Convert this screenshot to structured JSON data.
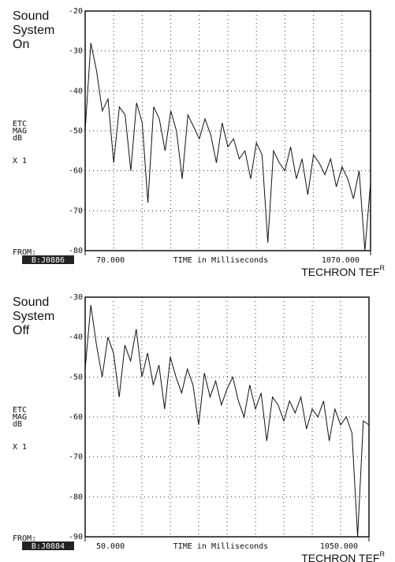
{
  "chart_data": [
    {
      "type": "line",
      "title": [
        "Sound",
        "System",
        "On"
      ],
      "ylabel": [
        "ETC",
        "MAG",
        "dB"
      ],
      "scale": "X 1",
      "from_label": "FROM:",
      "marker": "B:J0886",
      "xlabel": "TIME in Milliseconds",
      "brand": "TECHRON TEF",
      "brand_mark": "R",
      "color": "#111111",
      "grid": true,
      "ylim": [
        -80,
        -20
      ],
      "yticks": [
        -80,
        -70,
        -60,
        -50,
        -40,
        -30,
        -20
      ],
      "xlim": [
        70,
        1070
      ],
      "xticks": [
        {
          "value": 70,
          "label": "70.000"
        },
        {
          "value": 1070,
          "label": "1070.000"
        }
      ],
      "xgrid": [
        170,
        270,
        370,
        470,
        570,
        670,
        770,
        870,
        970
      ],
      "x": [
        70,
        90,
        110,
        130,
        150,
        170,
        190,
        210,
        230,
        250,
        270,
        290,
        310,
        330,
        350,
        370,
        390,
        410,
        430,
        450,
        470,
        490,
        510,
        530,
        550,
        570,
        590,
        610,
        630,
        650,
        670,
        690,
        710,
        730,
        750,
        770,
        790,
        810,
        830,
        850,
        870,
        890,
        910,
        930,
        950,
        970,
        990,
        1010,
        1030,
        1050,
        1070
      ],
      "values": [
        -50,
        -28,
        -35,
        -45,
        -42,
        -58,
        -44,
        -46,
        -60,
        -43,
        -48,
        -68,
        -44,
        -47,
        -55,
        -45,
        -50,
        -62,
        -46,
        -49,
        -52,
        -47,
        -51,
        -58,
        -48,
        -54,
        -52,
        -57,
        -55,
        -62,
        -53,
        -56,
        -78,
        -55,
        -58,
        -60,
        -54,
        -62,
        -57,
        -66,
        -56,
        -58,
        -61,
        -57,
        -64,
        -59,
        -62,
        -67,
        -60,
        -80,
        -63
      ]
    },
    {
      "type": "line",
      "title": [
        "Sound",
        "System",
        "Off"
      ],
      "ylabel": [
        "ETC",
        "MAG",
        "dB"
      ],
      "scale": "X 1",
      "from_label": "FROM:",
      "marker": "B:J0884",
      "xlabel": "TIME in Milliseconds",
      "brand": "TECHRON TEF",
      "brand_mark": "R",
      "color": "#111111",
      "grid": true,
      "ylim": [
        -90,
        -30
      ],
      "yticks": [
        -90,
        -80,
        -70,
        -60,
        -50,
        -40,
        -30
      ],
      "xlim": [
        50,
        1050
      ],
      "xticks": [
        {
          "value": 50,
          "label": "50.000"
        },
        {
          "value": 1050,
          "label": "1050.000"
        }
      ],
      "xgrid": [
        150,
        250,
        350,
        450,
        550,
        650,
        750,
        850,
        950
      ],
      "x": [
        50,
        70,
        90,
        110,
        130,
        150,
        170,
        190,
        210,
        230,
        250,
        270,
        290,
        310,
        330,
        350,
        370,
        390,
        410,
        430,
        450,
        470,
        490,
        510,
        530,
        550,
        570,
        590,
        610,
        630,
        650,
        670,
        690,
        710,
        730,
        750,
        770,
        790,
        810,
        830,
        850,
        870,
        890,
        910,
        930,
        950,
        970,
        990,
        1010,
        1030,
        1050
      ],
      "values": [
        -48,
        -32,
        -42,
        -50,
        -40,
        -44,
        -55,
        -42,
        -46,
        -38,
        -50,
        -44,
        -52,
        -47,
        -58,
        -45,
        -50,
        -54,
        -48,
        -52,
        -62,
        -49,
        -55,
        -51,
        -57,
        -53,
        -50,
        -56,
        -60,
        -52,
        -58,
        -54,
        -66,
        -55,
        -57,
        -61,
        -56,
        -59,
        -55,
        -63,
        -58,
        -60,
        -56,
        -66,
        -58,
        -62,
        -60,
        -64,
        -90,
        -61,
        -62
      ]
    }
  ]
}
